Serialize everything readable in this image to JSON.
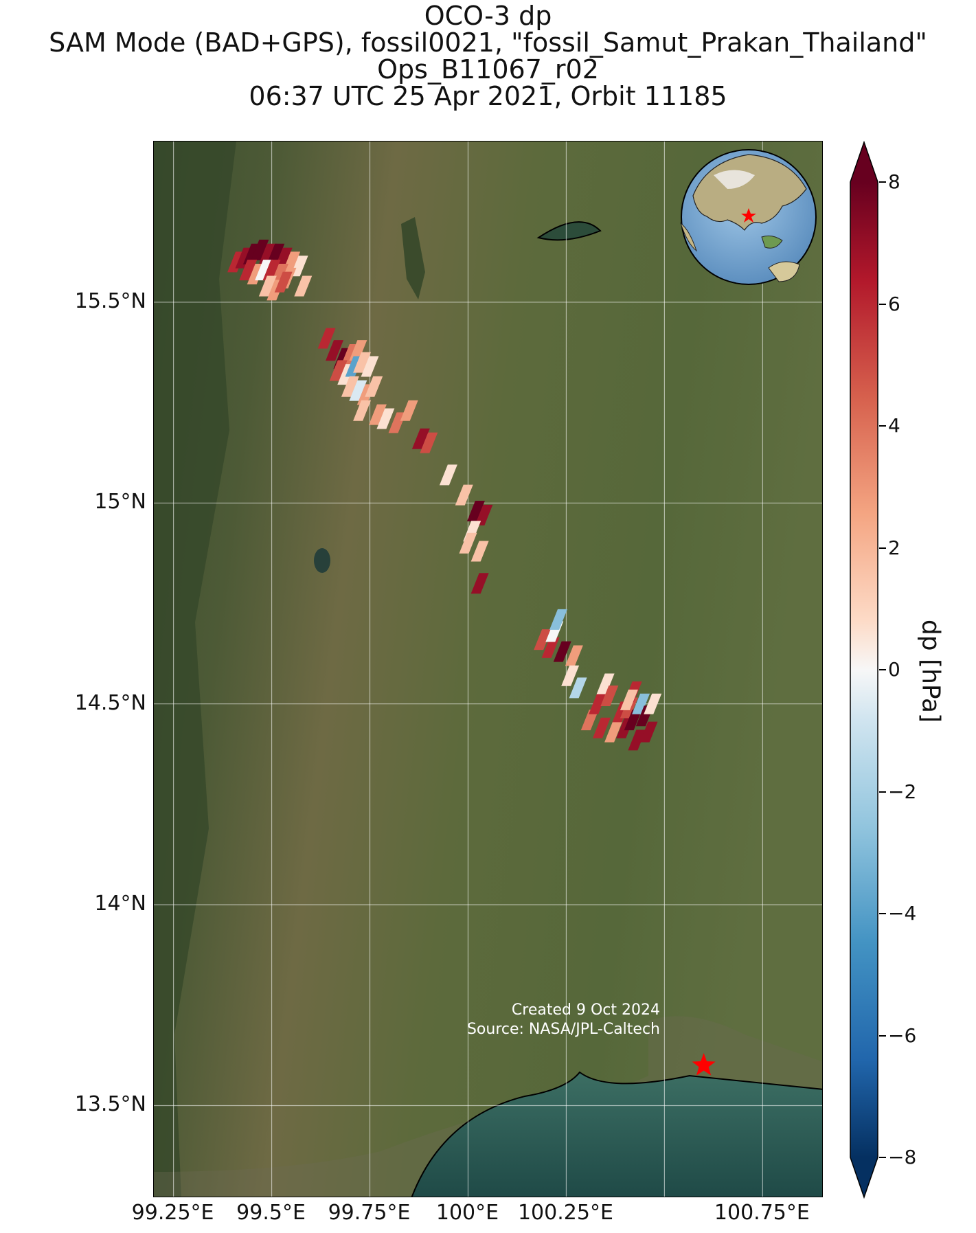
{
  "title": {
    "line1": "OCO-3 dp",
    "line2": "SAM Mode (BAD+GPS), fossil0021, \"fossil_Samut_Prakan_Thailand\"",
    "line3": "Ops_B11067_r02",
    "line4": "06:37 UTC 25 Apr 2021, Orbit 11185"
  },
  "map": {
    "lat_ticks": [
      {
        "value": 15.5,
        "label": "15.5°N"
      },
      {
        "value": 15.0,
        "label": "15°N"
      },
      {
        "value": 14.5,
        "label": "14.5°N"
      },
      {
        "value": 14.0,
        "label": "14°N"
      },
      {
        "value": 13.5,
        "label": "13.5°N"
      }
    ],
    "lon_ticks": [
      {
        "value": 99.25,
        "label": "99.25°E"
      },
      {
        "value": 99.5,
        "label": "99.5°E"
      },
      {
        "value": 99.75,
        "label": "99.75°E"
      },
      {
        "value": 100.0,
        "label": "100°E"
      },
      {
        "value": 100.25,
        "label": "100.25°E"
      },
      {
        "value": 100.75,
        "label": "100.75°E"
      }
    ],
    "lon_range": [
      99.2,
      100.905
    ],
    "lat_range": [
      13.27,
      15.9
    ],
    "target": {
      "lon": 100.6,
      "lat": 13.6,
      "marker": "red-star",
      "color": "#ff0000"
    },
    "credit_line1": "Created 9 Oct 2024",
    "credit_line2": "Source: NASA/JPL-Caltech",
    "basemap": "satellite-imagery",
    "land_color": "#5e6a3e",
    "water_color": "#2f5e55"
  },
  "colorbar": {
    "label": "dp [hPa]",
    "vmin": -8,
    "vmax": 8,
    "colormap": "RdBu_r",
    "extend": "both",
    "ticks": [
      {
        "value": 8,
        "label": "8"
      },
      {
        "value": 6,
        "label": "6"
      },
      {
        "value": 4,
        "label": "4"
      },
      {
        "value": 2,
        "label": "2"
      },
      {
        "value": 0,
        "label": "0"
      },
      {
        "value": -2,
        "label": "−2"
      },
      {
        "value": -4,
        "label": "−4"
      },
      {
        "value": -6,
        "label": "−6"
      },
      {
        "value": -8,
        "label": "−8"
      }
    ]
  },
  "chart_data": {
    "type": "scatter",
    "xlabel": "",
    "ylabel": "",
    "title": "OCO-3 dp",
    "points": [
      {
        "lon": 99.41,
        "lat": 15.6,
        "dp": 6
      },
      {
        "lon": 99.43,
        "lat": 15.61,
        "dp": 7
      },
      {
        "lon": 99.45,
        "lat": 15.62,
        "dp": 8
      },
      {
        "lon": 99.47,
        "lat": 15.63,
        "dp": 8
      },
      {
        "lon": 99.49,
        "lat": 15.62,
        "dp": 7
      },
      {
        "lon": 99.51,
        "lat": 15.62,
        "dp": 8
      },
      {
        "lon": 99.53,
        "lat": 15.61,
        "dp": 7
      },
      {
        "lon": 99.55,
        "lat": 15.6,
        "dp": 3
      },
      {
        "lon": 99.57,
        "lat": 15.59,
        "dp": 1
      },
      {
        "lon": 99.44,
        "lat": 15.58,
        "dp": 6
      },
      {
        "lon": 99.46,
        "lat": 15.57,
        "dp": 3
      },
      {
        "lon": 99.48,
        "lat": 15.58,
        "dp": 0
      },
      {
        "lon": 99.5,
        "lat": 15.58,
        "dp": 6
      },
      {
        "lon": 99.52,
        "lat": 15.57,
        "dp": 4
      },
      {
        "lon": 99.54,
        "lat": 15.56,
        "dp": 3
      },
      {
        "lon": 99.49,
        "lat": 15.54,
        "dp": 2
      },
      {
        "lon": 99.51,
        "lat": 15.53,
        "dp": 3
      },
      {
        "lon": 99.53,
        "lat": 15.55,
        "dp": 5
      },
      {
        "lon": 99.58,
        "lat": 15.54,
        "dp": 2
      },
      {
        "lon": 99.64,
        "lat": 15.41,
        "dp": 6
      },
      {
        "lon": 99.66,
        "lat": 15.38,
        "dp": 7
      },
      {
        "lon": 99.68,
        "lat": 15.36,
        "dp": 8
      },
      {
        "lon": 99.7,
        "lat": 15.37,
        "dp": 4
      },
      {
        "lon": 99.72,
        "lat": 15.38,
        "dp": 3
      },
      {
        "lon": 99.67,
        "lat": 15.33,
        "dp": 5
      },
      {
        "lon": 99.69,
        "lat": 15.32,
        "dp": 1
      },
      {
        "lon": 99.71,
        "lat": 15.34,
        "dp": -4
      },
      {
        "lon": 99.73,
        "lat": 15.35,
        "dp": 2
      },
      {
        "lon": 99.75,
        "lat": 15.34,
        "dp": 1
      },
      {
        "lon": 99.7,
        "lat": 15.29,
        "dp": 2
      },
      {
        "lon": 99.72,
        "lat": 15.28,
        "dp": -1
      },
      {
        "lon": 99.74,
        "lat": 15.27,
        "dp": 3
      },
      {
        "lon": 99.76,
        "lat": 15.29,
        "dp": 2
      },
      {
        "lon": 99.73,
        "lat": 15.23,
        "dp": 2
      },
      {
        "lon": 99.77,
        "lat": 15.22,
        "dp": 3
      },
      {
        "lon": 99.79,
        "lat": 15.21,
        "dp": 1
      },
      {
        "lon": 99.82,
        "lat": 15.2,
        "dp": 4
      },
      {
        "lon": 99.85,
        "lat": 15.23,
        "dp": 3
      },
      {
        "lon": 99.88,
        "lat": 15.16,
        "dp": 7
      },
      {
        "lon": 99.9,
        "lat": 15.15,
        "dp": 5
      },
      {
        "lon": 99.95,
        "lat": 15.07,
        "dp": 1
      },
      {
        "lon": 99.99,
        "lat": 15.02,
        "dp": 2
      },
      {
        "lon": 100.02,
        "lat": 14.98,
        "dp": 8
      },
      {
        "lon": 100.04,
        "lat": 14.97,
        "dp": 7
      },
      {
        "lon": 100.01,
        "lat": 14.93,
        "dp": 1
      },
      {
        "lon": 100.0,
        "lat": 14.9,
        "dp": 2
      },
      {
        "lon": 100.03,
        "lat": 14.88,
        "dp": 2
      },
      {
        "lon": 100.03,
        "lat": 14.8,
        "dp": 7
      },
      {
        "lon": 100.19,
        "lat": 14.66,
        "dp": 5
      },
      {
        "lon": 100.21,
        "lat": 14.64,
        "dp": 6
      },
      {
        "lon": 100.22,
        "lat": 14.68,
        "dp": 0
      },
      {
        "lon": 100.23,
        "lat": 14.71,
        "dp": -3
      },
      {
        "lon": 100.24,
        "lat": 14.63,
        "dp": 8
      },
      {
        "lon": 100.27,
        "lat": 14.62,
        "dp": 3
      },
      {
        "lon": 100.26,
        "lat": 14.57,
        "dp": 1
      },
      {
        "lon": 100.28,
        "lat": 14.54,
        "dp": -2
      },
      {
        "lon": 100.31,
        "lat": 14.46,
        "dp": 4
      },
      {
        "lon": 100.33,
        "lat": 14.5,
        "dp": 6
      },
      {
        "lon": 100.35,
        "lat": 14.55,
        "dp": 1
      },
      {
        "lon": 100.36,
        "lat": 14.52,
        "dp": 5
      },
      {
        "lon": 100.34,
        "lat": 14.44,
        "dp": 6
      },
      {
        "lon": 100.37,
        "lat": 14.43,
        "dp": 3
      },
      {
        "lon": 100.39,
        "lat": 14.48,
        "dp": 6
      },
      {
        "lon": 100.4,
        "lat": 14.44,
        "dp": 7
      },
      {
        "lon": 100.41,
        "lat": 14.49,
        "dp": 5
      },
      {
        "lon": 100.42,
        "lat": 14.46,
        "dp": 8
      },
      {
        "lon": 100.43,
        "lat": 14.41,
        "dp": 7
      },
      {
        "lon": 100.44,
        "lat": 14.5,
        "dp": -3
      },
      {
        "lon": 100.45,
        "lat": 14.47,
        "dp": 8
      },
      {
        "lon": 100.46,
        "lat": 14.43,
        "dp": 7
      },
      {
        "lon": 100.47,
        "lat": 14.5,
        "dp": 1
      },
      {
        "lon": 100.42,
        "lat": 14.53,
        "dp": 6
      },
      {
        "lon": 100.41,
        "lat": 14.51,
        "dp": 2
      }
    ]
  }
}
